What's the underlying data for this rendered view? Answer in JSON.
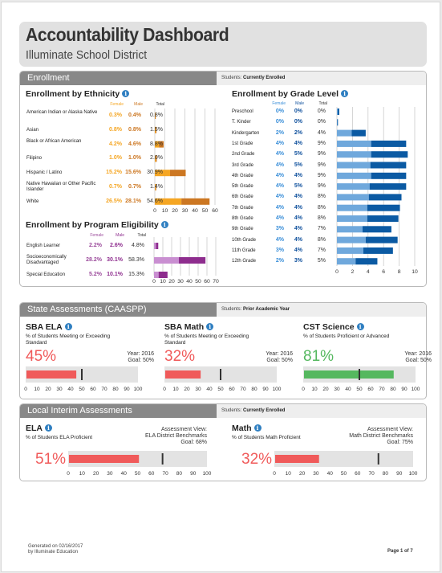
{
  "header": {
    "title": "Accountability Dashboard",
    "district": "Illuminate School District"
  },
  "colors": {
    "female": "#f5a623",
    "male": "#cc7722",
    "female_program": "#c98fd1",
    "male_program": "#8e2d8e",
    "grade_light": "#6fa8dc",
    "grade_dark": "#0b5aa3",
    "grade_female_text": "#3a8fd9",
    "grade_male_text": "#0d4f9c",
    "low": "#f05a5a",
    "good": "#55b85f"
  },
  "enrollment": {
    "section_label": "Enrollment",
    "students_label": "Students:",
    "students_value": "Currently Enrolled",
    "ethnicity": {
      "title": "Enrollment by Ethnicity",
      "col_female": "Female",
      "col_male": "Male",
      "col_total": "Total",
      "axis_ticks": [
        "0",
        "10",
        "20",
        "30",
        "40",
        "50",
        "60"
      ],
      "rows": [
        {
          "label": "American Indian or Alaska Native",
          "female": "0.3%",
          "male": "0.4%",
          "total": "0.8%",
          "f": 0.3,
          "m": 0.4
        },
        {
          "label": "Asian",
          "female": "0.8%",
          "male": "0.8%",
          "total": "1.5%",
          "f": 0.8,
          "m": 0.8
        },
        {
          "label": "Black or African American",
          "female": "4.2%",
          "male": "4.6%",
          "total": "8.8%",
          "f": 4.2,
          "m": 4.6
        },
        {
          "label": "Filipino",
          "female": "1.0%",
          "male": "1.0%",
          "total": "2.0%",
          "f": 1.0,
          "m": 1.0
        },
        {
          "label": "Hispanic / Latino",
          "female": "15.2%",
          "male": "15.6%",
          "total": "30.9%",
          "f": 15.2,
          "m": 15.6
        },
        {
          "label": "Native Hawaiian or Other Pacific Islander",
          "female": "0.7%",
          "male": "0.7%",
          "total": "1.4%",
          "f": 0.7,
          "m": 0.7
        },
        {
          "label": "White",
          "female": "26.5%",
          "male": "28.1%",
          "total": "54.6%",
          "f": 26.5,
          "m": 28.1
        }
      ]
    },
    "program": {
      "title": "Enrollment by Program Eligibility",
      "col_female": "Female",
      "col_male": "Male",
      "col_total": "Total",
      "axis_ticks": [
        "0",
        "10",
        "20",
        "30",
        "40",
        "50",
        "60",
        "70"
      ],
      "rows": [
        {
          "label": "English Learner",
          "female": "2.2%",
          "male": "2.6%",
          "total": "4.8%",
          "f": 2.2,
          "m": 2.6
        },
        {
          "label": "Socioeconomically Disadvantaged",
          "female": "28.2%",
          "male": "30.1%",
          "total": "58.3%",
          "f": 28.2,
          "m": 30.1
        },
        {
          "label": "Special Education",
          "female": "5.2%",
          "male": "10.1%",
          "total": "15.3%",
          "f": 5.2,
          "m": 10.1
        }
      ]
    },
    "grade": {
      "title": "Enrollment by Grade Level",
      "col_female": "Female",
      "col_male": "Male",
      "col_total": "Total",
      "axis_ticks": [
        "0",
        "2",
        "4",
        "6",
        "8",
        "10"
      ],
      "rows": [
        {
          "label": "Preschool",
          "female": "0%",
          "male": "0%",
          "total": "0%",
          "f": 0.1,
          "m": 0.2
        },
        {
          "label": "T. Kinder",
          "female": "0%",
          "male": "0%",
          "total": "0%",
          "f": 0.05,
          "m": 0.05
        },
        {
          "label": "Kindergarten",
          "female": "2%",
          "male": "2%",
          "total": "4%",
          "f": 1.9,
          "m": 1.8
        },
        {
          "label": "1st Grade",
          "female": "4%",
          "male": "4%",
          "total": "9%",
          "f": 4.4,
          "m": 4.5
        },
        {
          "label": "2nd Grade",
          "female": "4%",
          "male": "5%",
          "total": "9%",
          "f": 4.4,
          "m": 4.7
        },
        {
          "label": "3rd Grade",
          "female": "4%",
          "male": "5%",
          "total": "9%",
          "f": 4.3,
          "m": 4.6
        },
        {
          "label": "4th Grade",
          "female": "4%",
          "male": "4%",
          "total": "9%",
          "f": 4.4,
          "m": 4.5
        },
        {
          "label": "5th Grade",
          "female": "4%",
          "male": "5%",
          "total": "9%",
          "f": 4.2,
          "m": 4.7
        },
        {
          "label": "6th Grade",
          "female": "4%",
          "male": "4%",
          "total": "8%",
          "f": 4.1,
          "m": 4.2
        },
        {
          "label": "7th Grade",
          "female": "4%",
          "male": "4%",
          "total": "8%",
          "f": 3.9,
          "m": 4.2
        },
        {
          "label": "8th Grade",
          "female": "4%",
          "male": "4%",
          "total": "8%",
          "f": 3.9,
          "m": 4.0
        },
        {
          "label": "9th Grade",
          "female": "3%",
          "male": "4%",
          "total": "7%",
          "f": 3.3,
          "m": 3.7
        },
        {
          "label": "10th Grade",
          "female": "4%",
          "male": "4%",
          "total": "8%",
          "f": 3.7,
          "m": 4.1
        },
        {
          "label": "11th Grade",
          "female": "3%",
          "male": "4%",
          "total": "7%",
          "f": 3.4,
          "m": 3.8
        },
        {
          "label": "12th Grade",
          "female": "2%",
          "male": "3%",
          "total": "5%",
          "f": 2.4,
          "m": 2.8
        }
      ]
    }
  },
  "state": {
    "section_label": "State Assessments (CAASPP)",
    "students_label": "Students:",
    "students_value": "Prior Academic Year",
    "axis_ticks": [
      "0",
      "10",
      "20",
      "30",
      "40",
      "50",
      "60",
      "70",
      "80",
      "90",
      "100"
    ],
    "cards": [
      {
        "title": "SBA ELA",
        "sub": "% of Students Meeting or Exceeding Standard",
        "value": "45%",
        "pct": 45,
        "goal_pct": 50,
        "year": "Year: 2016",
        "goal": "Goal: 50%",
        "status": "low"
      },
      {
        "title": "SBA Math",
        "sub": "% of Students Meeting or Exceeding Standard",
        "value": "32%",
        "pct": 32,
        "goal_pct": 50,
        "year": "Year: 2016",
        "goal": "Goal: 50%",
        "status": "low"
      },
      {
        "title": "CST Science",
        "sub": "% of Students Proficient or Advanced",
        "value": "81%",
        "pct": 81,
        "goal_pct": 50,
        "year": "Year: 2016",
        "goal": "Goal: 50%",
        "status": "good"
      }
    ]
  },
  "interim": {
    "section_label": "Local Interim Assessments",
    "students_label": "Students:",
    "students_value": "Currently Enrolled",
    "axis_ticks": [
      "0",
      "10",
      "20",
      "30",
      "40",
      "50",
      "60",
      "70",
      "80",
      "90",
      "100"
    ],
    "cards": [
      {
        "title": "ELA",
        "sub": "% of Students ELA Proficient",
        "value": "51%",
        "pct": 51,
        "goal_pct": 68,
        "view_label": "Assessment View:",
        "view": "ELA District Benchmarks",
        "goal": "Goal: 68%",
        "status": "low"
      },
      {
        "title": "Math",
        "sub": "% of Students Math Proficient",
        "value": "32%",
        "pct": 32,
        "goal_pct": 75,
        "view_label": "Assessment View:",
        "view": "Math District Benchmarks",
        "goal": "Goal: 75%",
        "status": "low"
      }
    ]
  },
  "footer": {
    "generated": "Generated on 02/16/2017",
    "by": "by Illuminate Education",
    "page": "Page 1 of 7"
  }
}
